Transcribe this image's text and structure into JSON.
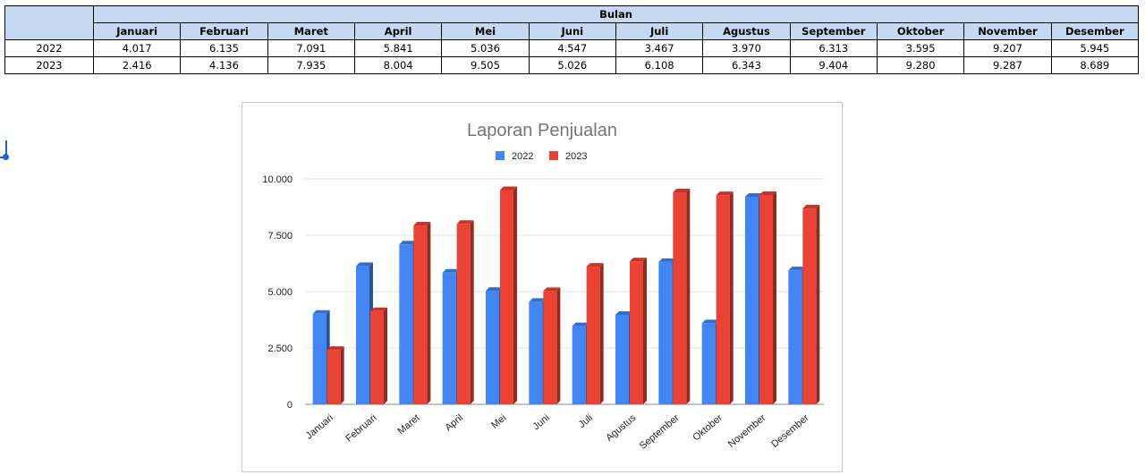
{
  "table": {
    "group_header": "Bulan",
    "months": [
      "Januari",
      "Februari",
      "Maret",
      "April",
      "Mei",
      "Juni",
      "Juli",
      "Agustus",
      "September",
      "Oktober",
      "November",
      "Desember"
    ],
    "rows": [
      {
        "year": "2022",
        "values": [
          "4.017",
          "6.135",
          "7.091",
          "5.841",
          "5.036",
          "4.547",
          "3.467",
          "3.970",
          "6.313",
          "3.595",
          "9.207",
          "5.945"
        ]
      },
      {
        "year": "2023",
        "values": [
          "2.416",
          "4.136",
          "7.935",
          "8.004",
          "9.505",
          "5.026",
          "6.108",
          "6.343",
          "9.404",
          "9.280",
          "9.287",
          "8.689"
        ]
      }
    ]
  },
  "chart_data": {
    "type": "bar",
    "title": "Laporan Penjualan",
    "categories": [
      "Januari",
      "Februari",
      "Maret",
      "April",
      "Mei",
      "Juni",
      "Juli",
      "Agustus",
      "September",
      "Oktober",
      "November",
      "Desember"
    ],
    "series": [
      {
        "name": "2022",
        "color": "#4285f4",
        "values": [
          4017,
          6135,
          7091,
          5841,
          5036,
          4547,
          3467,
          3970,
          6313,
          3595,
          9207,
          5945
        ]
      },
      {
        "name": "2023",
        "color": "#ea4335",
        "values": [
          2416,
          4136,
          7935,
          8004,
          9505,
          5026,
          6108,
          6343,
          9404,
          9280,
          9287,
          8689
        ]
      }
    ],
    "ylim": [
      0,
      10000
    ],
    "yticks": [
      0,
      2500,
      5000,
      7500,
      10000
    ],
    "ytick_labels": [
      "0",
      "2.500",
      "5.000",
      "7.500",
      "10.000"
    ],
    "grid": true,
    "legend": "top-center",
    "style": "3d-bars"
  }
}
